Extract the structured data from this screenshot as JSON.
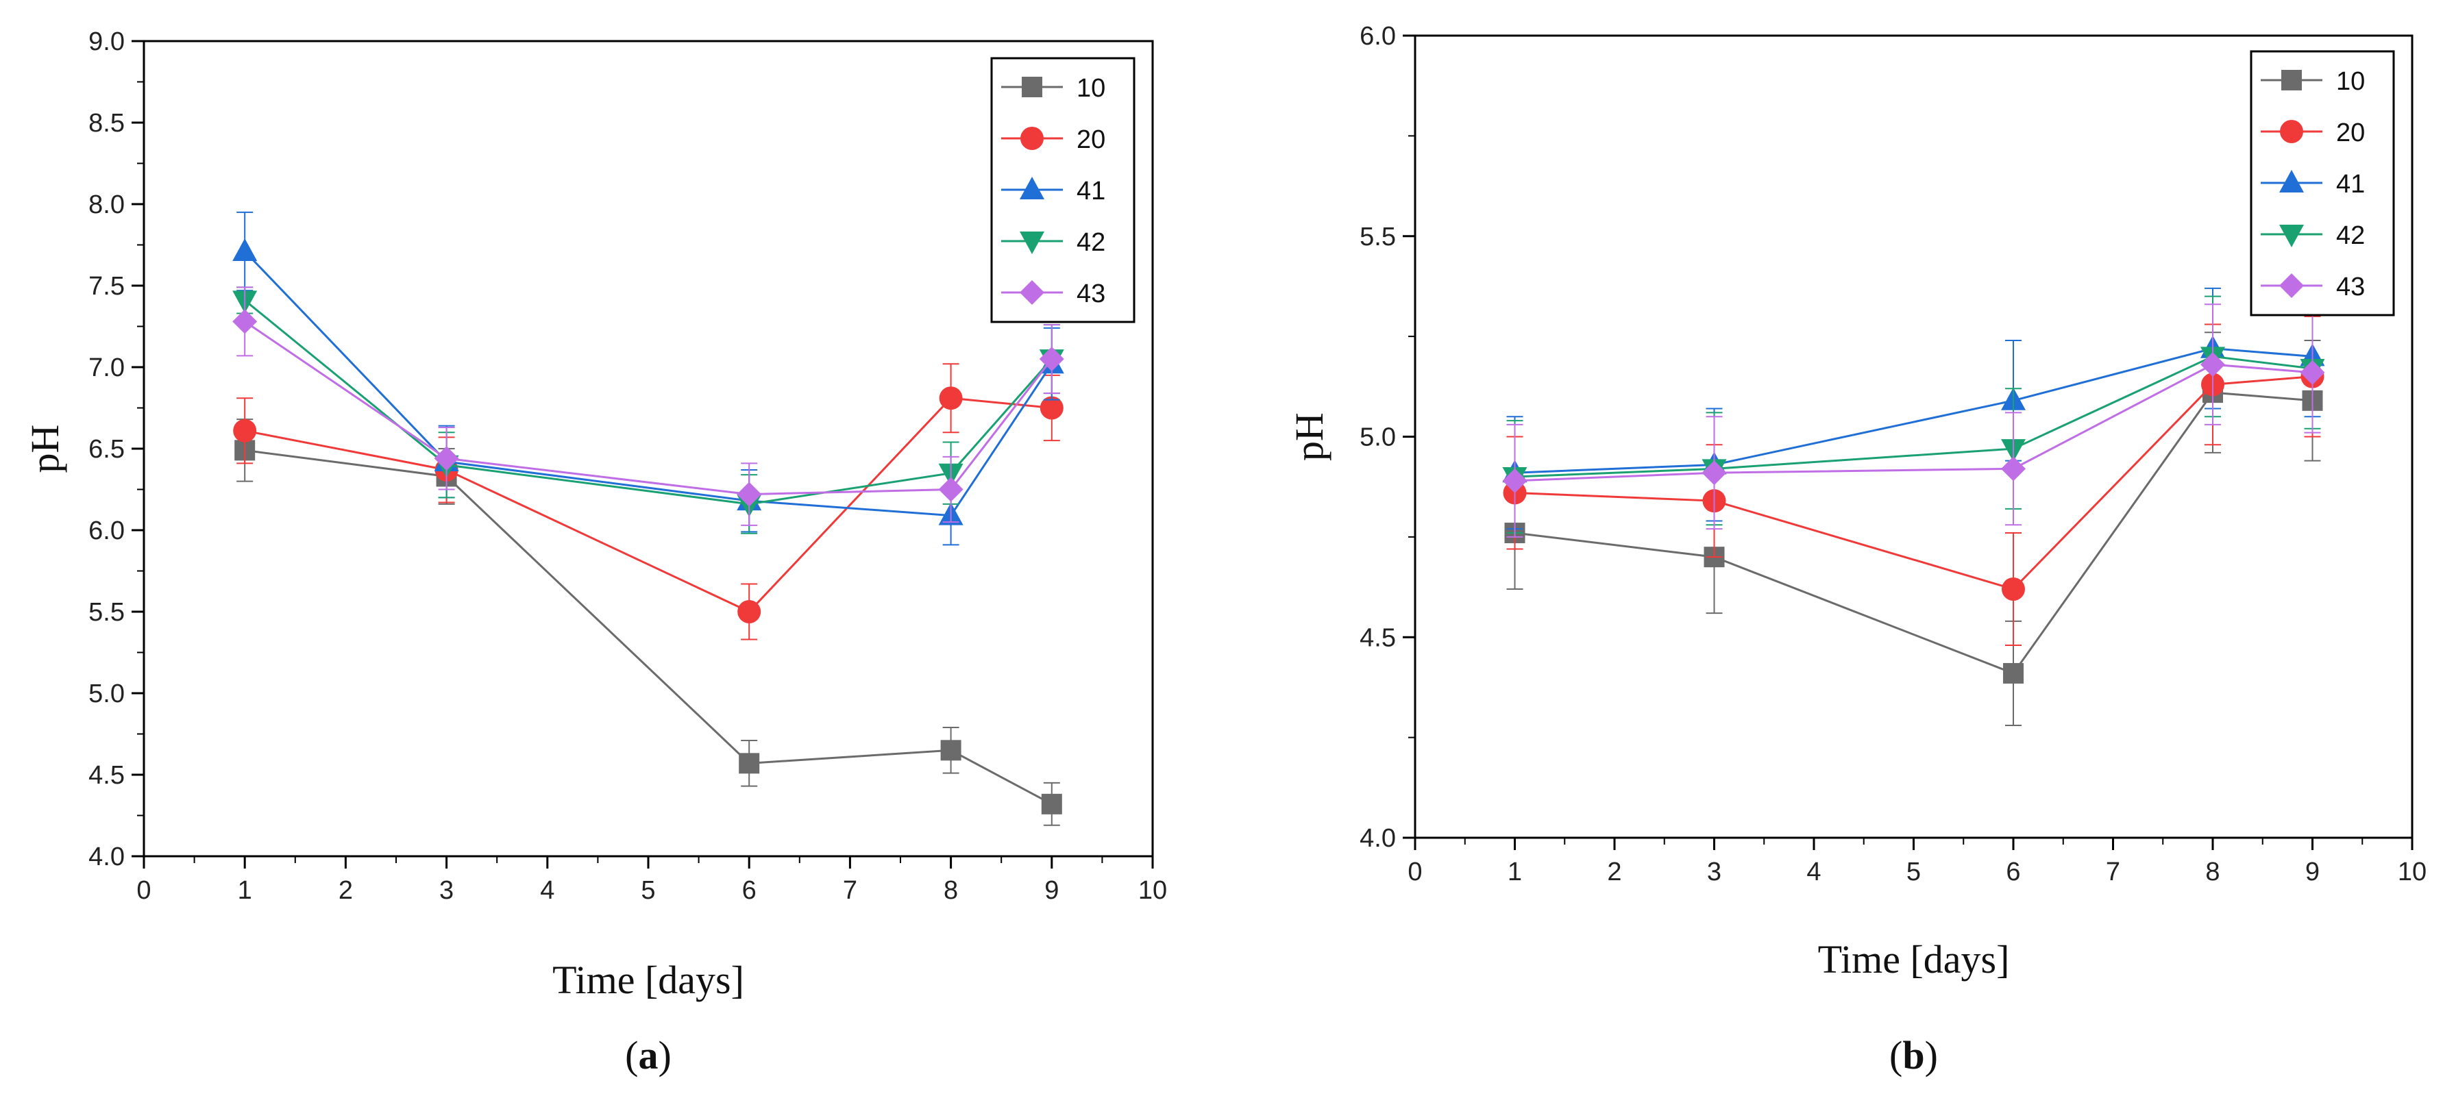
{
  "chart_data": [
    {
      "type": "line",
      "panel_label": {
        "open": "(",
        "letter": "a",
        "close": ")"
      },
      "xlabel": "Time [days]",
      "ylabel": "pH",
      "xlim": [
        0,
        10
      ],
      "ylim": [
        4.0,
        9.0
      ],
      "xticks": [
        "0",
        "1",
        "2",
        "3",
        "4",
        "5",
        "6",
        "7",
        "8",
        "9",
        "10"
      ],
      "yticks": [
        "4.0",
        "4.5",
        "5.0",
        "5.5",
        "6.0",
        "6.5",
        "7.0",
        "7.5",
        "8.0",
        "8.5",
        "9.0"
      ],
      "legend_position": "top-right",
      "x": [
        1,
        3,
        6,
        8,
        9
      ],
      "series": [
        {
          "name": "10",
          "color": "#6b6b6b",
          "marker": "square",
          "values": [
            6.49,
            6.33,
            4.57,
            4.65,
            4.32
          ],
          "errors": [
            0.19,
            0.17,
            0.14,
            0.14,
            0.13
          ]
        },
        {
          "name": "20",
          "color": "#f03a3a",
          "marker": "circle",
          "values": [
            6.61,
            6.37,
            5.5,
            6.81,
            6.75
          ],
          "errors": [
            0.2,
            0.2,
            0.17,
            0.21,
            0.2
          ]
        },
        {
          "name": "41",
          "color": "#1f6fd6",
          "marker": "triangle-up",
          "values": [
            7.71,
            6.42,
            6.18,
            6.09,
            7.02
          ],
          "errors": [
            0.24,
            0.22,
            0.19,
            0.18,
            0.22
          ]
        },
        {
          "name": "42",
          "color": "#1aa172",
          "marker": "triangle-down",
          "values": [
            7.41,
            6.4,
            6.16,
            6.35,
            7.05
          ],
          "errors": [
            0.08,
            0.2,
            0.18,
            0.19,
            0.21
          ]
        },
        {
          "name": "43",
          "color": "#c06ee6",
          "marker": "diamond",
          "values": [
            7.28,
            6.44,
            6.22,
            6.25,
            7.05
          ],
          "errors": [
            0.21,
            0.19,
            0.19,
            0.2,
            0.21
          ]
        }
      ]
    },
    {
      "type": "line",
      "panel_label": {
        "open": "(",
        "letter": "b",
        "close": ")"
      },
      "xlabel": "Time [days]",
      "ylabel": "pH",
      "xlim": [
        0,
        10
      ],
      "ylim": [
        4.0,
        6.0
      ],
      "xticks": [
        "0",
        "1",
        "2",
        "3",
        "4",
        "5",
        "6",
        "7",
        "8",
        "9",
        "10"
      ],
      "yticks": [
        "4.0",
        "4.5",
        "5.0",
        "5.5",
        "6.0"
      ],
      "legend_position": "top-right",
      "x": [
        1,
        3,
        6,
        8,
        9
      ],
      "series": [
        {
          "name": "10",
          "color": "#6b6b6b",
          "marker": "square",
          "values": [
            4.76,
            4.7,
            4.41,
            5.11,
            5.09
          ],
          "errors": [
            0.14,
            0.14,
            0.13,
            0.15,
            0.15
          ]
        },
        {
          "name": "20",
          "color": "#f03a3a",
          "marker": "circle",
          "values": [
            4.86,
            4.84,
            4.62,
            5.13,
            5.15
          ],
          "errors": [
            0.14,
            0.14,
            0.14,
            0.15,
            0.15
          ]
        },
        {
          "name": "41",
          "color": "#1f6fd6",
          "marker": "triangle-up",
          "values": [
            4.91,
            4.93,
            5.09,
            5.22,
            5.2
          ],
          "errors": [
            0.14,
            0.14,
            0.15,
            0.15,
            0.15
          ]
        },
        {
          "name": "42",
          "color": "#1aa172",
          "marker": "triangle-down",
          "values": [
            4.9,
            4.92,
            4.97,
            5.2,
            5.17
          ],
          "errors": [
            0.14,
            0.14,
            0.15,
            0.15,
            0.15
          ]
        },
        {
          "name": "43",
          "color": "#c06ee6",
          "marker": "diamond",
          "values": [
            4.89,
            4.91,
            4.92,
            5.18,
            5.16
          ],
          "errors": [
            0.14,
            0.14,
            0.14,
            0.15,
            0.15
          ]
        }
      ]
    }
  ]
}
